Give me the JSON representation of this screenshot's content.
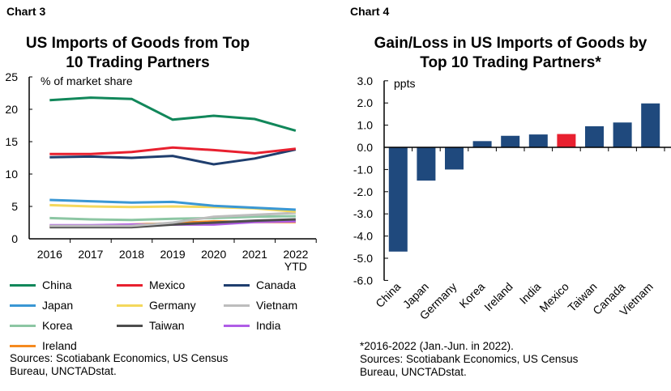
{
  "chart_data": [
    {
      "type": "line",
      "label": "Chart 3",
      "title": "US Imports of Goods from Top 10 Trading Partners",
      "unit_label": "% of market share",
      "categories": [
        "2016",
        "2017",
        "2018",
        "2019",
        "2020",
        "2021",
        "2022 YTD"
      ],
      "ylim": [
        0,
        25
      ],
      "yticks": [
        0,
        5,
        10,
        15,
        20,
        25
      ],
      "grid": false,
      "legend": "bottom",
      "series": [
        {
          "name": "China",
          "color": "#11875a",
          "values": [
            21.4,
            21.8,
            21.6,
            18.4,
            19.0,
            18.5,
            16.7
          ]
        },
        {
          "name": "Mexico",
          "color": "#e8202f",
          "values": [
            13.1,
            13.1,
            13.4,
            14.1,
            13.7,
            13.2,
            13.9
          ]
        },
        {
          "name": "Canada",
          "color": "#1f3e6e",
          "values": [
            12.6,
            12.7,
            12.5,
            12.8,
            11.5,
            12.4,
            13.8
          ]
        },
        {
          "name": "Japan",
          "color": "#3a97d4",
          "values": [
            6.0,
            5.8,
            5.6,
            5.7,
            5.1,
            4.8,
            4.5
          ]
        },
        {
          "name": "Germany",
          "color": "#f4d85c",
          "values": [
            5.2,
            5.0,
            4.9,
            5.0,
            4.9,
            4.7,
            4.2
          ]
        },
        {
          "name": "Vietnam",
          "color": "#bdbdbd",
          "values": [
            2.0,
            2.0,
            2.0,
            2.5,
            3.4,
            3.7,
            4.0
          ]
        },
        {
          "name": "Korea",
          "color": "#8cc6a3",
          "values": [
            3.2,
            3.0,
            2.9,
            3.1,
            3.2,
            3.4,
            3.5
          ]
        },
        {
          "name": "Taiwan",
          "color": "#4d4d4d",
          "values": [
            1.8,
            1.8,
            1.8,
            2.2,
            2.5,
            2.8,
            3.0
          ]
        },
        {
          "name": "India",
          "color": "#b05de6",
          "values": [
            2.1,
            2.1,
            2.2,
            2.2,
            2.2,
            2.6,
            2.7
          ]
        },
        {
          "name": "Ireland",
          "color": "#f58a1f",
          "values": [
            1.9,
            2.0,
            2.2,
            2.4,
            2.7,
            2.6,
            2.6
          ]
        }
      ],
      "source": "Sources: Scotiabank Economics, US Census Bureau, UNCTADstat."
    },
    {
      "type": "bar",
      "label": "Chart 4",
      "title": "Gain/Loss in US Imports of Goods by Top 10 Trading Partners*",
      "unit_label": "ppts",
      "categories": [
        "China",
        "Japan",
        "Germany",
        "Korea",
        "Ireland",
        "India",
        "Mexico",
        "Taiwan",
        "Canada",
        "Vietnam"
      ],
      "values": [
        -4.7,
        -1.5,
        -1.0,
        0.28,
        0.52,
        0.58,
        0.6,
        0.95,
        1.12,
        1.98
      ],
      "colors": [
        "#1f497d",
        "#1f497d",
        "#1f497d",
        "#1f497d",
        "#1f497d",
        "#1f497d",
        "#e8202f",
        "#1f497d",
        "#1f497d",
        "#1f497d"
      ],
      "ylim": [
        -6,
        3
      ],
      "yticks": [
        "3.0",
        "2.0",
        "1.0",
        "0.0",
        "-1.0",
        "-2.0",
        "-3.0",
        "-4.0",
        "-5.0",
        "-6.0"
      ],
      "grid": false,
      "note": "*2016-2022 (Jan.-Jun. in 2022).",
      "source": "Sources: Scotiabank Economics, US Census Bureau, UNCTADstat."
    }
  ]
}
